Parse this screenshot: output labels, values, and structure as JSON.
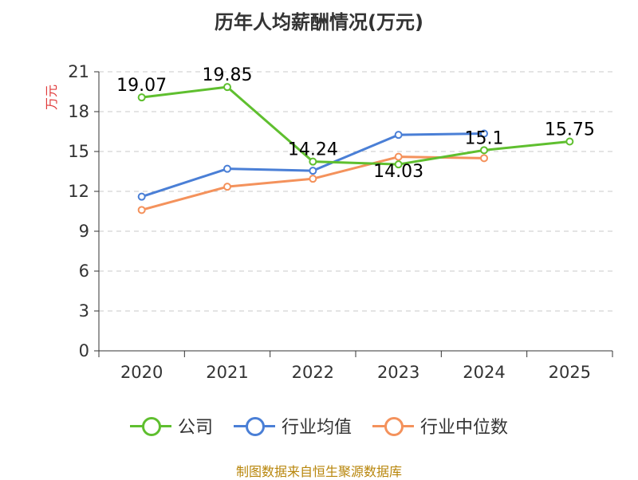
{
  "title": "历年人均薪酬情况(万元)",
  "source": "制图数据来自恒生聚源数据库",
  "chart_data": {
    "type": "line",
    "title": "历年人均薪酬情况(万元)",
    "xlabel": "",
    "ylabel": "万元",
    "ylim": [
      0,
      21
    ],
    "yticks": [
      0,
      3,
      6,
      9,
      12,
      15,
      18,
      21
    ],
    "categories": [
      "2020",
      "2021",
      "2022",
      "2023",
      "2024",
      "2025"
    ],
    "grid": true,
    "legend_position": "bottom-center",
    "series": [
      {
        "name": "公司",
        "color": "#5fbf2f",
        "values": [
          19.07,
          19.85,
          14.24,
          14.03,
          15.1,
          15.75
        ],
        "labels": [
          "19.07",
          "19.85",
          "14.24",
          "14.03",
          "15.1",
          "15.75"
        ]
      },
      {
        "name": "行业均值",
        "color": "#4a7fd6",
        "values": [
          11.6,
          13.7,
          13.55,
          16.25,
          16.35,
          null
        ],
        "labels": null
      },
      {
        "name": "行业中位数",
        "color": "#f4925c",
        "values": [
          10.6,
          12.35,
          12.95,
          14.6,
          14.5,
          null
        ],
        "labels": null
      }
    ]
  }
}
